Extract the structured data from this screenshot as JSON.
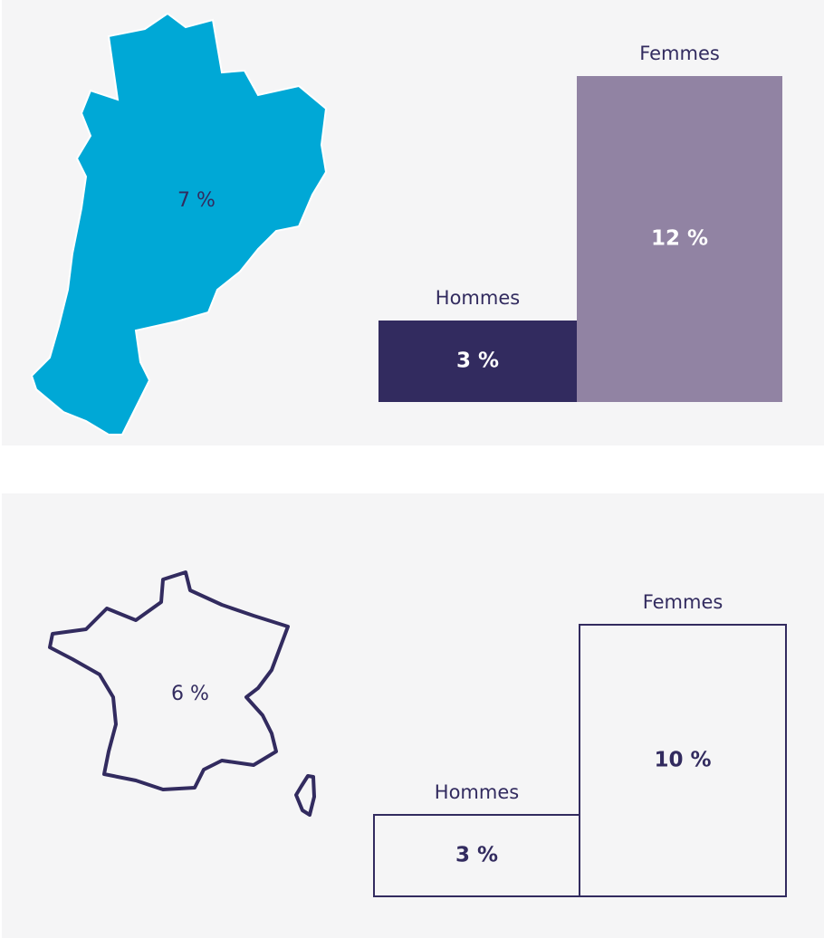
{
  "chart_data": [
    {
      "type": "bar",
      "region_value": 7,
      "region_value_label": "7 %",
      "categories": [
        "Hommes",
        "Femmes"
      ],
      "values": [
        3,
        12
      ],
      "value_labels": [
        "3 %",
        "12 %"
      ],
      "colors": [
        "#322b5f",
        "#9183a3"
      ],
      "filled": true
    },
    {
      "type": "bar",
      "region_value": 6,
      "region_value_label": "6 %",
      "categories": [
        "Hommes",
        "Femmes"
      ],
      "values": [
        3,
        10
      ],
      "value_labels": [
        "3 %",
        "10 %"
      ],
      "colors": [
        "#322b5f",
        "#322b5f"
      ],
      "filled": false
    }
  ]
}
